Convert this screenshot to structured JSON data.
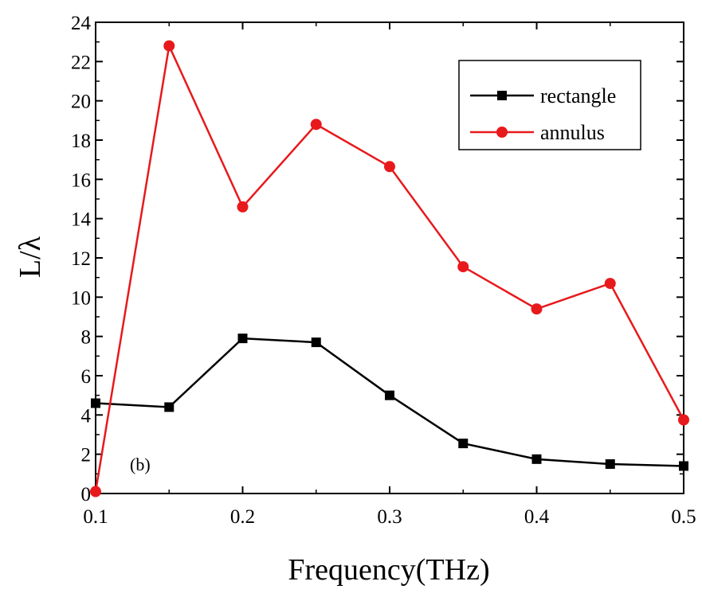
{
  "chart_data": {
    "type": "line",
    "title": "",
    "xlabel": "Frequency(THz)",
    "ylabel": "L/λ",
    "xlim": [
      0.1,
      0.5
    ],
    "ylim": [
      0,
      24
    ],
    "x_ticks": [
      "0.1",
      "0.2",
      "0.3",
      "0.4",
      "0.5"
    ],
    "y_ticks": [
      "0",
      "2",
      "4",
      "6",
      "8",
      "10",
      "12",
      "14",
      "16",
      "18",
      "20",
      "22",
      "24"
    ],
    "grid": false,
    "legend": "top-right",
    "x": [
      0.1,
      0.15,
      0.2,
      0.25,
      0.3,
      0.35,
      0.4,
      0.45,
      0.5
    ],
    "series": [
      {
        "name": "rectangle",
        "color": "#000000",
        "marker": "square",
        "values": [
          4.6,
          4.4,
          7.9,
          7.7,
          5.0,
          2.55,
          1.75,
          1.5,
          1.4
        ]
      },
      {
        "name": "annulus",
        "color": "#e8191c",
        "marker": "circle",
        "values": [
          0.1,
          22.8,
          14.6,
          18.8,
          16.65,
          11.55,
          9.4,
          10.7,
          3.75
        ]
      }
    ],
    "annotations": [
      "(b)"
    ]
  }
}
